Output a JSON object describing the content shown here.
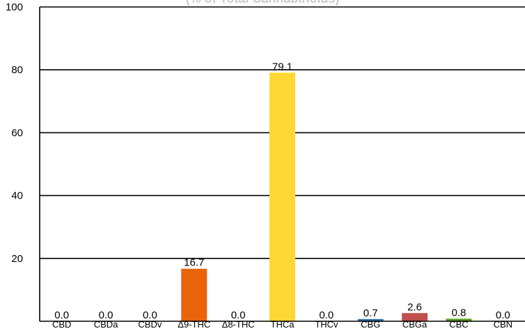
{
  "chart_data": {
    "type": "bar",
    "title": "(% of Total Cannabinoids)",
    "xlabel": "",
    "ylabel": "",
    "categories": [
      "CBD",
      "CBDa",
      "CBDv",
      "Δ9-THC",
      "Δ8-THC",
      "THCa",
      "THCv",
      "CBG",
      "CBGa",
      "CBC",
      "CBN"
    ],
    "values": [
      0.0,
      0.0,
      0.0,
      16.7,
      0.0,
      79.1,
      0.0,
      0.7,
      2.6,
      0.8,
      0.0
    ],
    "value_labels": [
      "0.0",
      "0.0",
      "0.0",
      "16.7",
      "0.0",
      "79.1",
      "0.0",
      "0.7",
      "2.6",
      "0.8",
      "0.0"
    ],
    "colors": [
      "#2a6fb0",
      "#2a6fb0",
      "#2a6fb0",
      "#e8630a",
      "#e8630a",
      "#fdd835",
      "#fdd835",
      "#2a6fb0",
      "#c0504d",
      "#5a9e1c",
      "#888888"
    ],
    "ylim": [
      0,
      100
    ],
    "yticks": [
      20,
      40,
      60,
      80,
      100
    ],
    "ytick_labels": [
      "20",
      "40",
      "60",
      "80",
      "100"
    ],
    "grid": true,
    "legend": "none"
  }
}
